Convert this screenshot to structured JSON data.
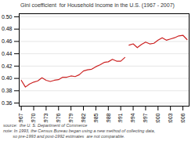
{
  "chart_data": {
    "type": "line",
    "title": "Gini coefficient  for Household Income in the U.S. (1967 - 2007)",
    "annotations": [
      "source:  the U. S. Department of Commerce",
      "note: In 1993, the Census Bureau began using a new method of collecting data,",
      "        so pre-1993 and post-1992 estimates  are not comparable."
    ],
    "x": [
      1967,
      1968,
      1969,
      1970,
      1971,
      1972,
      1973,
      1974,
      1975,
      1976,
      1977,
      1978,
      1979,
      1980,
      1981,
      1982,
      1983,
      1984,
      1985,
      1986,
      1987,
      1988,
      1989,
      1990,
      1991,
      1992,
      1993,
      1994,
      1995,
      1996,
      1997,
      1998,
      1999,
      2000,
      2001,
      2002,
      2003,
      2004,
      2005,
      2006,
      2007
    ],
    "series": [
      {
        "color": "#cc2222",
        "values": [
          0.397,
          0.386,
          0.391,
          0.394,
          0.396,
          0.401,
          0.397,
          0.395,
          0.397,
          0.398,
          0.402,
          0.402,
          0.404,
          0.403,
          0.406,
          0.412,
          0.414,
          0.415,
          0.419,
          0.422,
          0.426,
          0.427,
          0.431,
          0.428,
          0.428,
          0.434,
          null,
          null,
          null,
          null,
          null,
          null,
          null,
          null,
          null,
          null,
          null,
          null,
          null,
          null,
          null
        ]
      },
      {
        "color": "#cc2222",
        "values": [
          null,
          null,
          null,
          null,
          null,
          null,
          null,
          null,
          null,
          null,
          null,
          null,
          null,
          null,
          null,
          null,
          null,
          null,
          null,
          null,
          null,
          null,
          null,
          null,
          null,
          null,
          0.454,
          0.456,
          0.45,
          0.455,
          0.459,
          0.456,
          0.457,
          0.462,
          0.466,
          0.462,
          0.464,
          0.466,
          0.469,
          0.47,
          0.463
        ]
      }
    ],
    "xlim": [
      1966.5,
      2007.5
    ],
    "xticks": [
      1967,
      1970,
      1973,
      1976,
      1979,
      1982,
      1985,
      1988,
      1991,
      1994,
      1997,
      2000,
      2003,
      2006
    ],
    "ylim": [
      0.355,
      0.505
    ],
    "yticks": [
      0.36,
      0.38,
      {
        "value": 0.4,
        "label": "0.40"
      },
      0.42,
      0.44,
      0.46,
      0.48,
      {
        "value": 0.5,
        "label": "0.50"
      }
    ],
    "grid": "y"
  }
}
